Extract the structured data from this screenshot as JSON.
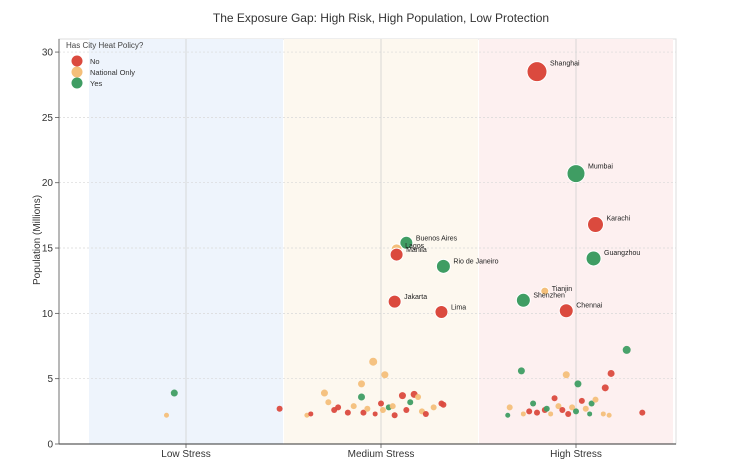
{
  "chart_data": {
    "type": "scatter",
    "title": "The Exposure Gap: High Risk, High Population, Low Protection",
    "xlabel": "",
    "ylabel": "Population (Millions)",
    "ylim": [
      0,
      31
    ],
    "categories": [
      "Low Stress",
      "Medium Stress",
      "High Stress"
    ],
    "yticks": [
      0,
      5,
      10,
      15,
      20,
      25,
      30
    ],
    "grid": true,
    "legend": {
      "title": "Has City Heat Policy?",
      "placement": "top-left",
      "entries": [
        {
          "label": "No",
          "color": "#db4a3e"
        },
        {
          "label": "National Only",
          "color": "#f4bf7a"
        },
        {
          "label": "Yes",
          "color": "#3f9d63"
        }
      ]
    },
    "band_colors": {
      "Low Stress": "#eef4fc",
      "Medium Stress": "#fdf8ef",
      "High Stress": "#fdf0f0"
    },
    "labeled_points": [
      {
        "label": "Shanghai",
        "category": "High Stress",
        "x": 1.8,
        "y": 28.5,
        "policy": "No",
        "size": 10
      },
      {
        "label": "Mumbai",
        "category": "High Stress",
        "x": 2.0,
        "y": 20.7,
        "policy": "Yes",
        "size": 9
      },
      {
        "label": "Karachi",
        "category": "High Stress",
        "x": 2.1,
        "y": 16.8,
        "policy": "No",
        "size": 8
      },
      {
        "label": "Guangzhou",
        "category": "High Stress",
        "x": 2.09,
        "y": 14.2,
        "policy": "Yes",
        "size": 7.5
      },
      {
        "label": "Tianjin",
        "category": "High Stress",
        "x": 1.84,
        "y": 11.7,
        "policy": "National Only",
        "size": 4
      },
      {
        "label": "Shenzhen",
        "category": "High Stress",
        "x": 1.73,
        "y": 11.0,
        "policy": "Yes",
        "size": 7
      },
      {
        "label": "Chennai",
        "category": "High Stress",
        "x": 1.95,
        "y": 10.2,
        "policy": "No",
        "size": 7
      },
      {
        "label": "Buenos Aires",
        "category": "Medium Stress",
        "x": 1.13,
        "y": 15.4,
        "policy": "Yes",
        "size": 6.5
      },
      {
        "label": "Lagos",
        "category": "Medium Stress",
        "x": 1.08,
        "y": 14.9,
        "policy": "National Only",
        "size": 5.5
      },
      {
        "label": "Manila",
        "category": "Medium Stress",
        "x": 1.08,
        "y": 14.5,
        "policy": "No",
        "size": 6.5
      },
      {
        "label": "Rio de Janeiro",
        "category": "Medium Stress",
        "x": 1.32,
        "y": 13.6,
        "policy": "Yes",
        "size": 7
      },
      {
        "label": "Jakarta",
        "category": "Medium Stress",
        "x": 1.07,
        "y": 10.9,
        "policy": "No",
        "size": 6.5
      },
      {
        "label": "Lima",
        "category": "Medium Stress",
        "x": 1.31,
        "y": 10.1,
        "policy": "No",
        "size": 6.5
      }
    ],
    "points": [
      {
        "x": -0.1,
        "y": 2.2,
        "policy": "National Only",
        "size": 2.5
      },
      {
        "x": -0.06,
        "y": 3.9,
        "policy": "Yes",
        "size": 3.5
      },
      {
        "x": 0.48,
        "y": 2.7,
        "policy": "No",
        "size": 3
      },
      {
        "x": 0.62,
        "y": 2.2,
        "policy": "National Only",
        "size": 2.5
      },
      {
        "x": 0.64,
        "y": 2.3,
        "policy": "No",
        "size": 2.5
      },
      {
        "x": 0.71,
        "y": 3.9,
        "policy": "National Only",
        "size": 3.5
      },
      {
        "x": 0.73,
        "y": 3.2,
        "policy": "National Only",
        "size": 3
      },
      {
        "x": 0.76,
        "y": 2.6,
        "policy": "No",
        "size": 3
      },
      {
        "x": 0.78,
        "y": 2.8,
        "policy": "No",
        "size": 3
      },
      {
        "x": 0.83,
        "y": 2.4,
        "policy": "No",
        "size": 3
      },
      {
        "x": 0.86,
        "y": 2.9,
        "policy": "National Only",
        "size": 3
      },
      {
        "x": 0.9,
        "y": 4.6,
        "policy": "National Only",
        "size": 3.5
      },
      {
        "x": 0.9,
        "y": 3.6,
        "policy": "Yes",
        "size": 3.5
      },
      {
        "x": 0.91,
        "y": 2.4,
        "policy": "No",
        "size": 3
      },
      {
        "x": 0.93,
        "y": 2.7,
        "policy": "National Only",
        "size": 3
      },
      {
        "x": 0.96,
        "y": 6.3,
        "policy": "National Only",
        "size": 4
      },
      {
        "x": 0.97,
        "y": 2.3,
        "policy": "No",
        "size": 2.5
      },
      {
        "x": 1.0,
        "y": 3.1,
        "policy": "No",
        "size": 3
      },
      {
        "x": 1.01,
        "y": 2.6,
        "policy": "National Only",
        "size": 3
      },
      {
        "x": 1.02,
        "y": 5.3,
        "policy": "National Only",
        "size": 3.5
      },
      {
        "x": 1.04,
        "y": 2.8,
        "policy": "Yes",
        "size": 3
      },
      {
        "x": 1.06,
        "y": 2.9,
        "policy": "National Only",
        "size": 3
      },
      {
        "x": 1.07,
        "y": 2.2,
        "policy": "No",
        "size": 3
      },
      {
        "x": 1.11,
        "y": 3.7,
        "policy": "No",
        "size": 3.5
      },
      {
        "x": 1.13,
        "y": 2.6,
        "policy": "No",
        "size": 3
      },
      {
        "x": 1.15,
        "y": 3.2,
        "policy": "Yes",
        "size": 3
      },
      {
        "x": 1.17,
        "y": 3.8,
        "policy": "No",
        "size": 3.5
      },
      {
        "x": 1.19,
        "y": 3.6,
        "policy": "National Only",
        "size": 3
      },
      {
        "x": 1.21,
        "y": 2.5,
        "policy": "National Only",
        "size": 3
      },
      {
        "x": 1.23,
        "y": 2.3,
        "policy": "No",
        "size": 3
      },
      {
        "x": 1.27,
        "y": 2.8,
        "policy": "National Only",
        "size": 3
      },
      {
        "x": 1.31,
        "y": 3.1,
        "policy": "No",
        "size": 3
      },
      {
        "x": 1.32,
        "y": 3.0,
        "policy": "No",
        "size": 3
      },
      {
        "x": 1.65,
        "y": 2.2,
        "policy": "Yes",
        "size": 2.5
      },
      {
        "x": 1.66,
        "y": 2.8,
        "policy": "National Only",
        "size": 3
      },
      {
        "x": 1.72,
        "y": 5.6,
        "policy": "Yes",
        "size": 3.5
      },
      {
        "x": 1.73,
        "y": 2.3,
        "policy": "National Only",
        "size": 2.5
      },
      {
        "x": 1.76,
        "y": 2.5,
        "policy": "No",
        "size": 3
      },
      {
        "x": 1.78,
        "y": 3.1,
        "policy": "Yes",
        "size": 3
      },
      {
        "x": 1.8,
        "y": 2.4,
        "policy": "No",
        "size": 3
      },
      {
        "x": 1.84,
        "y": 2.6,
        "policy": "No",
        "size": 3
      },
      {
        "x": 1.85,
        "y": 2.7,
        "policy": "Yes",
        "size": 3
      },
      {
        "x": 1.87,
        "y": 2.3,
        "policy": "National Only",
        "size": 2.5
      },
      {
        "x": 1.89,
        "y": 3.5,
        "policy": "No",
        "size": 3
      },
      {
        "x": 1.91,
        "y": 2.9,
        "policy": "National Only",
        "size": 3
      },
      {
        "x": 1.93,
        "y": 2.6,
        "policy": "No",
        "size": 3
      },
      {
        "x": 1.95,
        "y": 5.3,
        "policy": "National Only",
        "size": 3.5
      },
      {
        "x": 1.96,
        "y": 2.3,
        "policy": "No",
        "size": 3
      },
      {
        "x": 1.98,
        "y": 2.8,
        "policy": "National Only",
        "size": 3
      },
      {
        "x": 2.0,
        "y": 2.5,
        "policy": "Yes",
        "size": 3
      },
      {
        "x": 2.01,
        "y": 4.6,
        "policy": "Yes",
        "size": 3.5
      },
      {
        "x": 2.03,
        "y": 3.3,
        "policy": "No",
        "size": 3
      },
      {
        "x": 2.05,
        "y": 2.7,
        "policy": "National Only",
        "size": 3
      },
      {
        "x": 2.07,
        "y": 2.3,
        "policy": "Yes",
        "size": 2.5
      },
      {
        "x": 2.08,
        "y": 3.1,
        "policy": "Yes",
        "size": 3
      },
      {
        "x": 2.1,
        "y": 3.4,
        "policy": "National Only",
        "size": 3
      },
      {
        "x": 2.14,
        "y": 2.3,
        "policy": "National Only",
        "size": 2.5
      },
      {
        "x": 2.17,
        "y": 2.2,
        "policy": "National Only",
        "size": 2.5
      },
      {
        "x": 2.15,
        "y": 4.3,
        "policy": "No",
        "size": 3.5
      },
      {
        "x": 2.18,
        "y": 5.4,
        "policy": "No",
        "size": 3.5
      },
      {
        "x": 2.26,
        "y": 7.2,
        "policy": "Yes",
        "size": 4
      },
      {
        "x": 2.34,
        "y": 2.4,
        "policy": "No",
        "size": 3
      }
    ]
  }
}
